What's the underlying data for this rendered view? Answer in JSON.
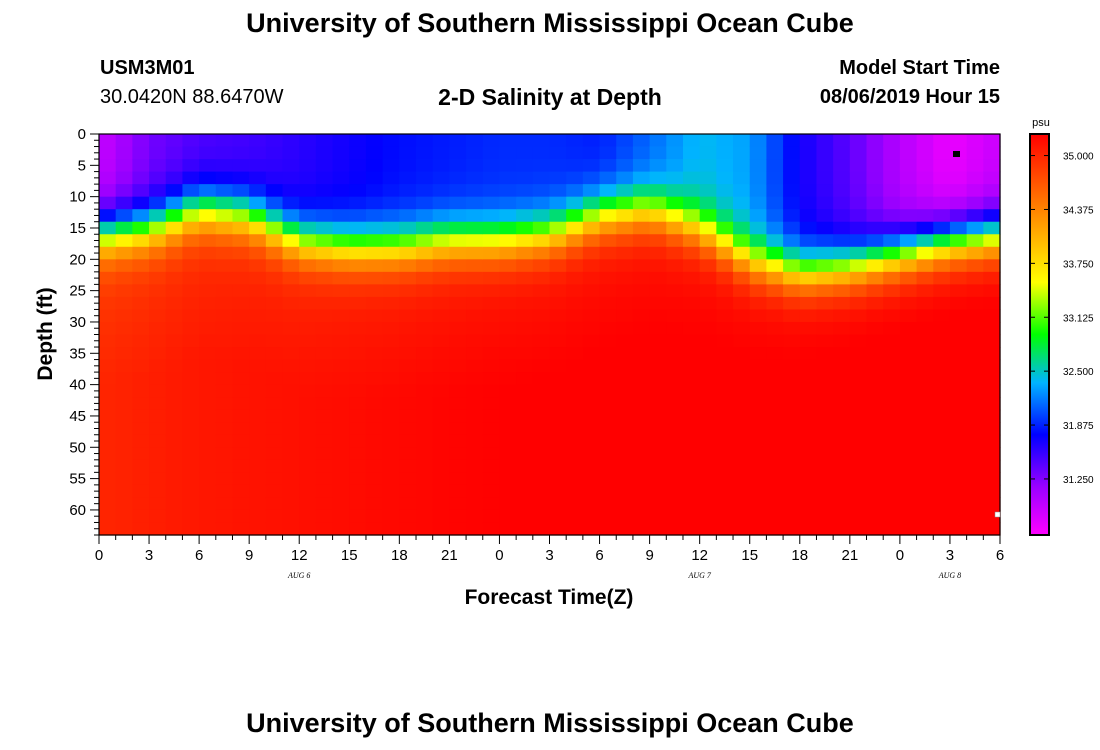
{
  "header": {
    "title": "University of Southern Mississippi Ocean Cube",
    "footer_title": "University of Southern Mississippi Ocean Cube",
    "station_id": "USM3M01",
    "coords": "30.0420N 88.6470W",
    "plot_title": "2-D Salinity at Depth",
    "model_label": "Model Start Time",
    "model_time": "08/06/2019 Hour 15"
  },
  "chart_data": {
    "type": "heatmap",
    "title": "2-D Salinity at Depth",
    "xlabel": "Forecast Time(Z)",
    "ylabel": "Depth (ft)",
    "x_ticks": [
      "0",
      "3",
      "6",
      "9",
      "12",
      "15",
      "18",
      "21",
      "0",
      "3",
      "6",
      "9",
      "12",
      "15",
      "18",
      "21",
      "0",
      "3",
      "6"
    ],
    "x_range_hours": [
      0,
      54
    ],
    "y_ticks": [
      "0",
      "5",
      "10",
      "15",
      "20",
      "25",
      "30",
      "35",
      "40",
      "45",
      "50",
      "55",
      "60"
    ],
    "y_range_ft": [
      0,
      64
    ],
    "date_labels": [
      {
        "label": "AUG 6",
        "hour": 12
      },
      {
        "label": "AUG 7",
        "hour": 36
      },
      {
        "label": "AUG 8",
        "hour": 51
      }
    ],
    "colorbar": {
      "unit": "psu",
      "min": 30.6,
      "max": 35.25,
      "ticks": [
        "35.000",
        "34.375",
        "33.750",
        "33.125",
        "32.500",
        "31.875",
        "31.250"
      ],
      "tick_values": [
        35.0,
        34.375,
        33.75,
        33.125,
        32.5,
        31.875,
        31.25
      ]
    },
    "mixed_layer_salinity": {
      "hours": [
        0,
        3,
        6,
        9,
        12,
        15,
        18,
        21,
        24,
        27,
        30,
        33,
        36,
        39,
        42,
        45,
        48,
        51,
        54
      ],
      "values": [
        30.9,
        31.3,
        31.45,
        31.5,
        31.6,
        31.7,
        31.8,
        31.85,
        31.9,
        31.9,
        31.85,
        32.1,
        32.4,
        32.3,
        31.7,
        31.4,
        31.0,
        30.7,
        30.9
      ]
    },
    "halocline_depth_ft": {
      "hours": [
        0,
        3,
        6,
        9,
        12,
        15,
        18,
        21,
        24,
        27,
        30,
        33,
        36,
        39,
        42,
        45,
        48,
        51,
        54
      ],
      "values": [
        16,
        15,
        12,
        13,
        17,
        18,
        18,
        17,
        17,
        16,
        13,
        12,
        15,
        20,
        22,
        21,
        19,
        17,
        16
      ]
    },
    "deep_salinity": {
      "hours": [
        0,
        6,
        12,
        18,
        24,
        30,
        36,
        42,
        48,
        54
      ],
      "values": [
        34.85,
        34.95,
        35.0,
        35.05,
        35.1,
        35.12,
        35.15,
        35.18,
        35.2,
        35.22
      ]
    }
  }
}
